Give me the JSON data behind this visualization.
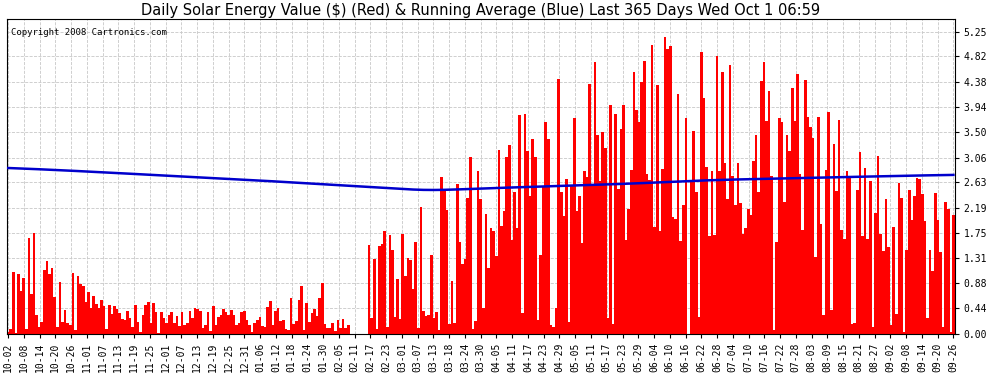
{
  "title": "Daily Solar Energy Value ($) (Red) & Running Average (Blue) Last 365 Days Wed Oct 1 06:59",
  "copyright": "Copyright 2008 Cartronics.com",
  "bar_color": "#FF0000",
  "line_color": "#0000CC",
  "background_color": "#FFFFFF",
  "grid_color": "#C8C8C8",
  "title_fontsize": 10.5,
  "tick_fontsize": 7,
  "ylim": [
    0.0,
    5.469
  ],
  "yticks": [
    0.0,
    0.44,
    0.88,
    1.31,
    1.75,
    2.19,
    2.63,
    3.06,
    3.5,
    3.94,
    4.38,
    4.82,
    5.25
  ],
  "x_labels": [
    "10-02",
    "10-08",
    "10-14",
    "10-20",
    "10-26",
    "11-01",
    "11-07",
    "11-13",
    "11-19",
    "11-25",
    "12-01",
    "12-07",
    "12-13",
    "12-19",
    "12-25",
    "12-31",
    "01-06",
    "01-12",
    "01-18",
    "01-24",
    "01-30",
    "02-05",
    "02-11",
    "02-17",
    "02-23",
    "03-01",
    "03-07",
    "03-13",
    "03-18",
    "03-24",
    "03-30",
    "04-05",
    "04-11",
    "04-17",
    "04-23",
    "04-29",
    "05-05",
    "05-11",
    "05-17",
    "05-23",
    "05-29",
    "06-04",
    "06-10",
    "06-16",
    "06-22",
    "06-28",
    "07-04",
    "07-10",
    "07-16",
    "07-22",
    "07-28",
    "08-03",
    "08-09",
    "08-15",
    "08-21",
    "08-27",
    "09-02",
    "09-08",
    "09-14",
    "09-20",
    "09-26"
  ],
  "n_days": 365,
  "bar_width": 1.0,
  "running_avg_points": [
    [
      0,
      2.88
    ],
    [
      30,
      2.82
    ],
    [
      60,
      2.75
    ],
    [
      90,
      2.68
    ],
    [
      120,
      2.6
    ],
    [
      150,
      2.52
    ],
    [
      160,
      2.5
    ],
    [
      180,
      2.52
    ],
    [
      200,
      2.55
    ],
    [
      220,
      2.58
    ],
    [
      240,
      2.61
    ],
    [
      260,
      2.65
    ],
    [
      280,
      2.68
    ],
    [
      300,
      2.7
    ],
    [
      320,
      2.72
    ],
    [
      340,
      2.74
    ],
    [
      364,
      2.76
    ]
  ]
}
